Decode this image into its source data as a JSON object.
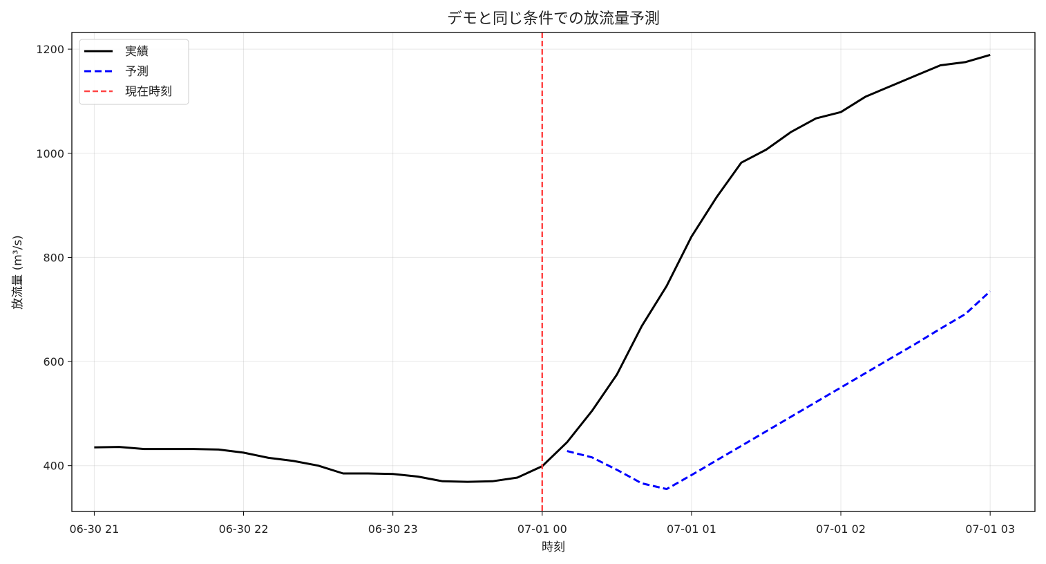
{
  "chart_data": {
    "type": "line",
    "title": "デモと同じ条件での放流量予測",
    "xlabel": "時刻",
    "ylabel": "放流量 (m³/s)",
    "xlim": [
      "2024-06-30 20:51",
      "2024-07-01 03:18"
    ],
    "ylim": [
      312,
      1232
    ],
    "x_ticks": [
      "06-30 21",
      "06-30 22",
      "06-30 23",
      "07-01 00",
      "07-01 01",
      "07-01 02",
      "07-01 03"
    ],
    "y_ticks": [
      400,
      600,
      800,
      1000,
      1200
    ],
    "grid": true,
    "legend": {
      "position": "top-left"
    },
    "series": [
      {
        "name": "実績",
        "color": "#000000",
        "style": "solid",
        "x": [
          "2024-06-30 21:00",
          "2024-06-30 21:10",
          "2024-06-30 21:20",
          "2024-06-30 21:30",
          "2024-06-30 21:40",
          "2024-06-30 21:50",
          "2024-06-30 22:00",
          "2024-06-30 22:10",
          "2024-06-30 22:20",
          "2024-06-30 22:30",
          "2024-06-30 22:40",
          "2024-06-30 22:50",
          "2024-06-30 23:00",
          "2024-06-30 23:10",
          "2024-06-30 23:20",
          "2024-06-30 23:30",
          "2024-06-30 23:40",
          "2024-06-30 23:50",
          "2024-07-01 00:00",
          "2024-07-01 00:10",
          "2024-07-01 00:20",
          "2024-07-01 00:30",
          "2024-07-01 00:40",
          "2024-07-01 00:50",
          "2024-07-01 01:00",
          "2024-07-01 01:10",
          "2024-07-01 01:20",
          "2024-07-01 01:30",
          "2024-07-01 01:40",
          "2024-07-01 01:50",
          "2024-07-01 02:00",
          "2024-07-01 02:10",
          "2024-07-01 02:20",
          "2024-07-01 02:30",
          "2024-07-01 02:40",
          "2024-07-01 02:50",
          "2024-07-01 03:00"
        ],
        "values": [
          435,
          436,
          432,
          432,
          432,
          431,
          425,
          415,
          409,
          400,
          385,
          385,
          384,
          379,
          370,
          369,
          370,
          377,
          399,
          445,
          505,
          575,
          668,
          745,
          840,
          915,
          982,
          1007,
          1041,
          1067,
          1079,
          1109,
          1129,
          1149,
          1169,
          1175,
          1189
        ]
      },
      {
        "name": "予測",
        "color": "#0000ff",
        "style": "dashed",
        "x": [
          "2024-07-01 00:10",
          "2024-07-01 00:20",
          "2024-07-01 00:30",
          "2024-07-01 00:40",
          "2024-07-01 00:50",
          "2024-07-01 01:00",
          "2024-07-01 01:10",
          "2024-07-01 01:20",
          "2024-07-01 01:30",
          "2024-07-01 01:40",
          "2024-07-01 01:50",
          "2024-07-01 02:00",
          "2024-07-01 02:10",
          "2024-07-01 02:20",
          "2024-07-01 02:30",
          "2024-07-01 02:40",
          "2024-07-01 02:50",
          "2024-07-01 03:00"
        ],
        "values": [
          428,
          416,
          392,
          366,
          355,
          382,
          410,
          438,
          466,
          494,
          522,
          550,
          578,
          606,
          634,
          663,
          691,
          735
        ]
      }
    ],
    "vline": {
      "name": "現在時刻",
      "x": "2024-07-01 00:00",
      "color": "#ff4444",
      "style": "dashed"
    }
  }
}
